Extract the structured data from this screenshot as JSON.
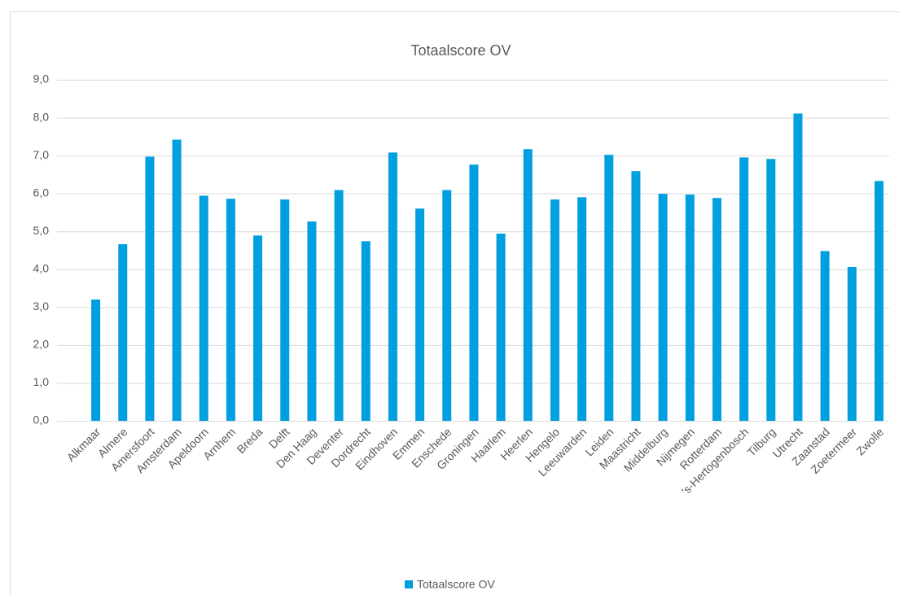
{
  "chart_data": {
    "type": "bar",
    "title": "Totaalscore OV",
    "categories": [
      "Alkmaar",
      "Almere",
      "Amersfoort",
      "Amsterdam",
      "Apeldoorn",
      "Arnhem",
      "Breda",
      "Delft",
      "Den Haag",
      "Deventer",
      "Dordrecht",
      "Eindhoven",
      "Emmen",
      "Enschede",
      "Groningen",
      "Haarlem",
      "Heerlen",
      "Hengelo",
      "Leeuwarden",
      "Leiden",
      "Maastricht",
      "Middelburg",
      "Nijmegen",
      "Rotterdam",
      "'s-Hertogenbosch",
      "Tilburg",
      "Utrecht",
      "Zaanstad",
      "Zoetermeer",
      "Zwolle"
    ],
    "series": [
      {
        "name": "Totaalscore OV",
        "color": "#009fdf",
        "values": [
          3.2,
          4.66,
          6.97,
          7.42,
          5.94,
          5.86,
          4.89,
          5.84,
          5.26,
          6.09,
          4.74,
          7.08,
          5.6,
          6.09,
          6.76,
          4.94,
          7.17,
          5.84,
          5.9,
          7.02,
          6.59,
          5.99,
          5.97,
          5.88,
          6.95,
          6.91,
          8.11,
          4.48,
          4.06,
          6.33
        ]
      }
    ],
    "ylim": [
      0,
      9
    ],
    "yticks": [
      {
        "value": 0,
        "label": "0,0"
      },
      {
        "value": 1,
        "label": "1,0"
      },
      {
        "value": 2,
        "label": "2,0"
      },
      {
        "value": 3,
        "label": "3,0"
      },
      {
        "value": 4,
        "label": "4,0"
      },
      {
        "value": 5,
        "label": "5,0"
      },
      {
        "value": 6,
        "label": "6,0"
      },
      {
        "value": 7,
        "label": "7,0"
      },
      {
        "value": 8,
        "label": "8,0"
      },
      {
        "value": 9,
        "label": "9,0"
      }
    ],
    "grid": true,
    "legend": "bottom"
  }
}
